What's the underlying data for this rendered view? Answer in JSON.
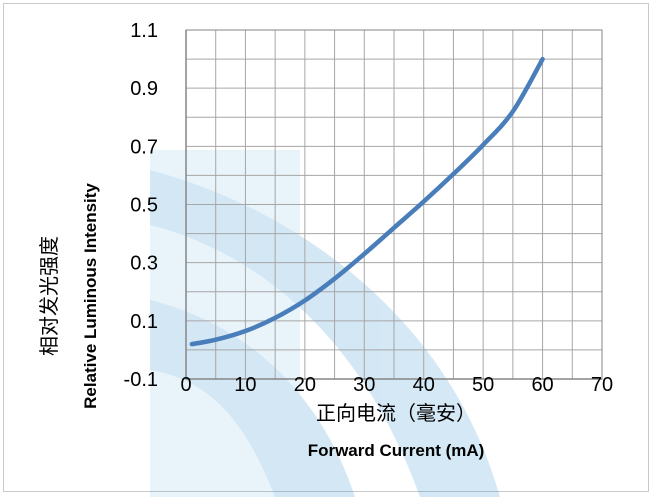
{
  "chart_data": {
    "type": "line",
    "xlabel_cn": "正向电流（毫安）",
    "xlabel_en": "Forward Current (mA)",
    "ylabel_cn": "相对发光强度",
    "ylabel_en": "Relative Luminous Intensity",
    "xlim": [
      0,
      70
    ],
    "ylim": [
      -0.1,
      1.1
    ],
    "x_minor_step": 5,
    "y_minor_step": 0.1,
    "x_ticks": [
      "0",
      "10",
      "20",
      "30",
      "40",
      "50",
      "60",
      "70"
    ],
    "y_ticks": [
      "-0.1",
      "0.1",
      "0.3",
      "0.5",
      "0.7",
      "0.9",
      "1.1"
    ],
    "grid": true,
    "colors": {
      "line": "#4a7ebb",
      "grid": "#a6a6a6",
      "watermark": "#2e8ccf"
    },
    "series": [
      {
        "x": [
          1,
          5,
          10,
          15,
          20,
          25,
          30,
          35,
          40,
          45,
          50,
          55,
          60
        ],
        "y": [
          0.02,
          0.035,
          0.065,
          0.11,
          0.17,
          0.245,
          0.33,
          0.42,
          0.51,
          0.605,
          0.705,
          0.82,
          1.0
        ]
      }
    ]
  }
}
